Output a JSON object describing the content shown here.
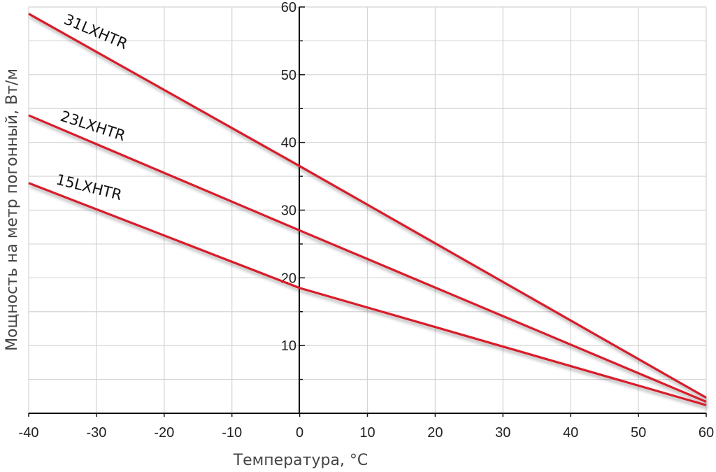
{
  "chart_data": {
    "type": "line",
    "title": "",
    "xlabel": "Температура, °C",
    "ylabel": "Мощность на метр погонный, Вт/м",
    "xlim": [
      -40,
      60
    ],
    "ylim": [
      0,
      60
    ],
    "x_ticks": [
      -40,
      -30,
      -20,
      -10,
      0,
      10,
      20,
      30,
      40,
      50,
      60
    ],
    "y_ticks": [
      10,
      20,
      30,
      40,
      50,
      60
    ],
    "grid": true,
    "legend": "inline labels",
    "line_color": "#d81f2a",
    "series": [
      {
        "name": "31LXHTR",
        "x": [
          -40,
          0,
          60
        ],
        "y": [
          59,
          36.5,
          2.3
        ]
      },
      {
        "name": "23LXHTR",
        "x": [
          -40,
          0,
          60
        ],
        "y": [
          44,
          27,
          1.7
        ]
      },
      {
        "name": "15LXHTR",
        "x": [
          -40,
          0,
          60
        ],
        "y": [
          34,
          18.5,
          1.2
        ]
      }
    ]
  }
}
